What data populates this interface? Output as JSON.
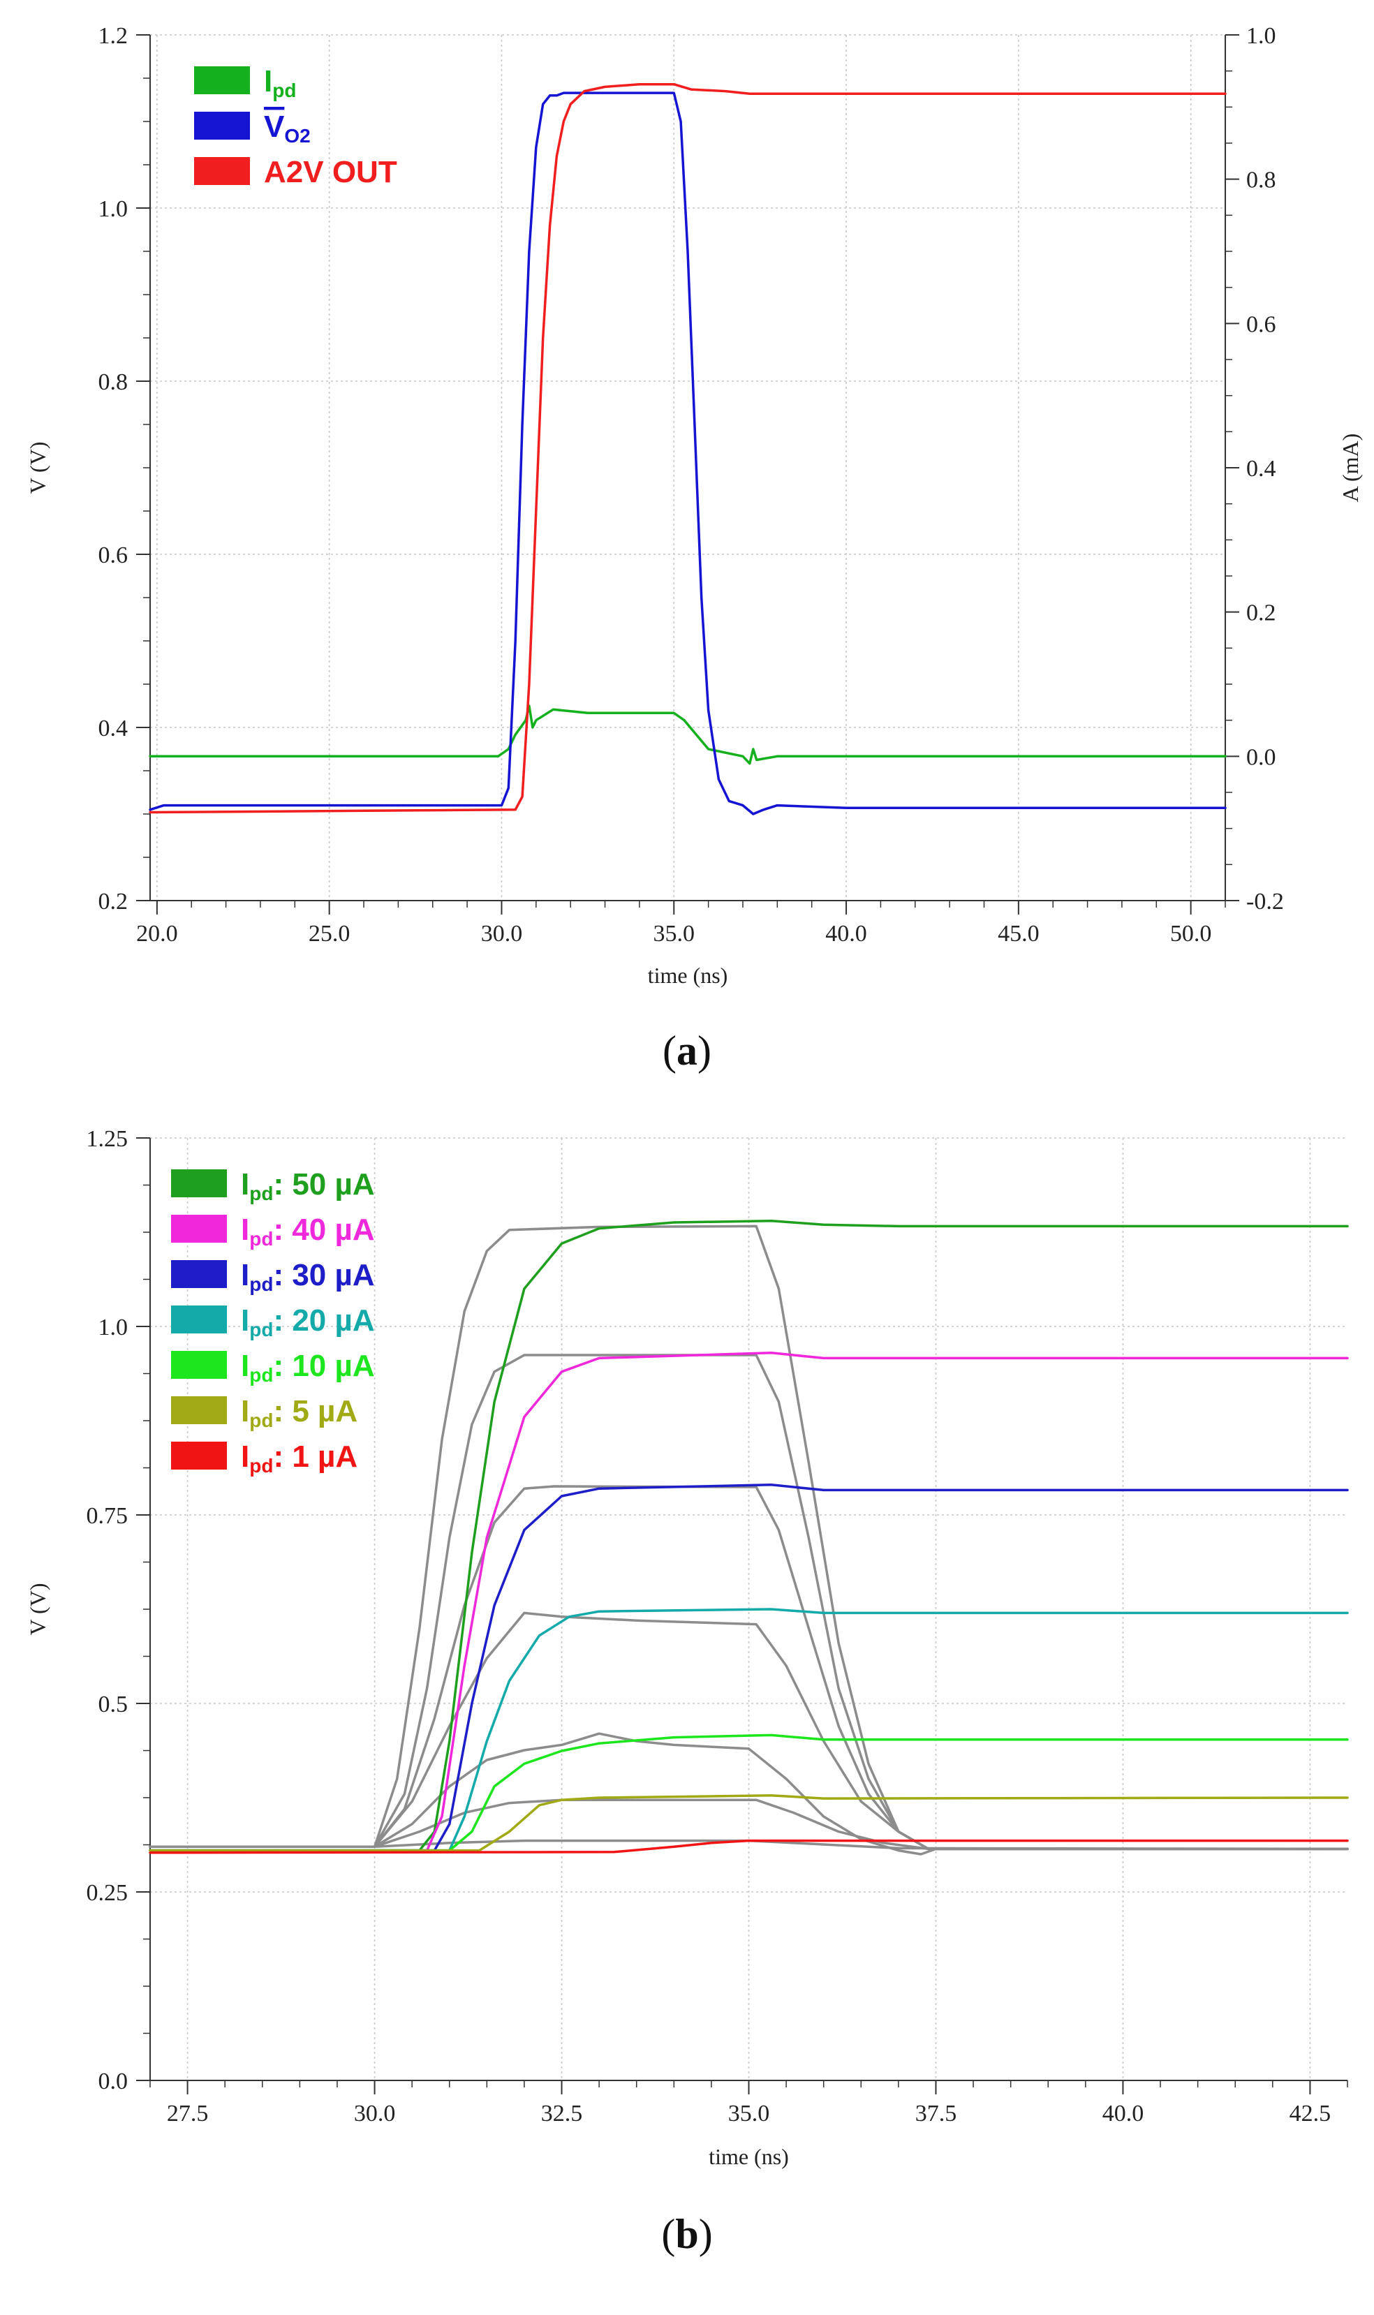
{
  "chart_data": [
    {
      "type": "line",
      "panel_label": "a",
      "xlabel": "time (ns)",
      "ylabel": "V (V)",
      "y2label": "A (mA)",
      "xlim": [
        19.8,
        51.0
      ],
      "ylim": [
        0.2,
        1.2
      ],
      "y2lim": [
        -0.2,
        1.0
      ],
      "xticks": [
        "20.0",
        "25.0",
        "30.0",
        "35.0",
        "40.0",
        "45.0",
        "50.0"
      ],
      "yticks": [
        "0.2",
        "0.4",
        "0.6",
        "0.8",
        "1.0",
        "1.2"
      ],
      "y2ticks": [
        "-0.2",
        "0.0",
        "0.2",
        "0.4",
        "0.6",
        "0.8",
        "1.0"
      ],
      "grid": true,
      "legend_position": "top-left",
      "series": [
        {
          "name": "Ipd",
          "legend_main": "I",
          "legend_sub": "pd",
          "color": "#14b01e",
          "axis": "right",
          "x": [
            19.8,
            29.9,
            30.2,
            30.4,
            30.7,
            30.8,
            30.9,
            31.0,
            31.5,
            32.5,
            35.0,
            35.3,
            36.0,
            37.0,
            37.2,
            37.3,
            37.4,
            38.0,
            51.0
          ],
          "y": [
            0.0,
            0.0,
            0.01,
            0.03,
            0.05,
            0.07,
            0.04,
            0.05,
            0.065,
            0.06,
            0.06,
            0.05,
            0.01,
            0.0,
            -0.01,
            0.01,
            -0.005,
            0.0,
            0.0
          ]
        },
        {
          "name": "VO2 (inverted)",
          "legend_main": "V",
          "legend_sub": "O2",
          "overline": true,
          "color": "#1414d2",
          "axis": "left",
          "x": [
            19.8,
            20.2,
            30.0,
            30.2,
            30.4,
            30.6,
            30.8,
            31.0,
            31.2,
            31.4,
            31.6,
            31.8,
            33.0,
            35.0,
            35.2,
            35.4,
            35.6,
            35.8,
            36.0,
            36.3,
            36.6,
            37.0,
            37.3,
            37.6,
            38.0,
            40.0,
            51.0
          ],
          "y": [
            0.305,
            0.31,
            0.31,
            0.33,
            0.5,
            0.75,
            0.95,
            1.07,
            1.12,
            1.13,
            1.13,
            1.133,
            1.133,
            1.133,
            1.1,
            0.95,
            0.75,
            0.55,
            0.42,
            0.34,
            0.315,
            0.31,
            0.3,
            0.305,
            0.31,
            0.307,
            0.307
          ]
        },
        {
          "name": "A2V OUT",
          "legend_main": "A2V OUT",
          "legend_sub": "",
          "color": "#f01e1e",
          "axis": "left",
          "x": [
            19.8,
            30.4,
            30.6,
            30.8,
            31.0,
            31.2,
            31.4,
            31.6,
            31.8,
            32.0,
            32.4,
            33.0,
            34.0,
            35.0,
            35.5,
            36.5,
            37.2,
            51.0
          ],
          "y": [
            0.302,
            0.305,
            0.32,
            0.45,
            0.65,
            0.85,
            0.98,
            1.06,
            1.1,
            1.12,
            1.135,
            1.14,
            1.143,
            1.143,
            1.137,
            1.135,
            1.132,
            1.132
          ]
        }
      ]
    },
    {
      "type": "line",
      "panel_label": "b",
      "xlabel": "time (ns)",
      "ylabel": "V (V)",
      "xlim": [
        27.0,
        43.0
      ],
      "ylim": [
        0.0,
        1.25
      ],
      "xticks": [
        "27.5",
        "30.0",
        "32.5",
        "35.0",
        "37.5",
        "40.0",
        "42.5"
      ],
      "yticks": [
        "0.0",
        "0.25",
        "0.5",
        "0.75",
        "1.0",
        "1.25"
      ],
      "grid": true,
      "legend_position": "top-left",
      "series": [
        {
          "name": "Ipd: 50 µA",
          "legend_main": "I",
          "legend_sub": "pd",
          "legend_value": ": 50 µA",
          "color": "#1ea01e",
          "x": [
            27.0,
            30.6,
            30.8,
            31.0,
            31.3,
            31.6,
            32.0,
            32.5,
            33.0,
            34.0,
            35.3,
            36.0,
            37.0,
            43.0
          ],
          "y": [
            0.305,
            0.305,
            0.33,
            0.45,
            0.7,
            0.9,
            1.05,
            1.11,
            1.13,
            1.138,
            1.14,
            1.135,
            1.133,
            1.133
          ]
        },
        {
          "name": "Ipd: 40 µA",
          "legend_main": "I",
          "legend_sub": "pd",
          "legend_value": ": 40 µA",
          "color": "#f028dc",
          "x": [
            27.0,
            30.7,
            30.9,
            31.2,
            31.5,
            32.0,
            32.5,
            33.0,
            35.3,
            36.0,
            43.0
          ],
          "y": [
            0.305,
            0.305,
            0.35,
            0.55,
            0.72,
            0.88,
            0.94,
            0.958,
            0.965,
            0.958,
            0.958
          ]
        },
        {
          "name": "Ipd: 30 µA",
          "legend_main": "I",
          "legend_sub": "pd",
          "legend_value": ": 30 µA",
          "color": "#1e1ec8",
          "x": [
            27.0,
            30.8,
            31.0,
            31.3,
            31.6,
            32.0,
            32.5,
            33.0,
            35.3,
            36.0,
            43.0
          ],
          "y": [
            0.305,
            0.305,
            0.34,
            0.5,
            0.63,
            0.73,
            0.775,
            0.785,
            0.79,
            0.783,
            0.783
          ]
        },
        {
          "name": "Ipd: 20 µA",
          "legend_main": "I",
          "legend_sub": "pd",
          "legend_value": ": 20 µA",
          "color": "#14aaaa",
          "x": [
            27.0,
            31.0,
            31.2,
            31.5,
            31.8,
            32.2,
            32.6,
            33.0,
            35.3,
            36.0,
            43.0
          ],
          "y": [
            0.305,
            0.305,
            0.35,
            0.45,
            0.53,
            0.59,
            0.615,
            0.622,
            0.625,
            0.62,
            0.62
          ]
        },
        {
          "name": "Ipd: 10 µA",
          "legend_main": "I",
          "legend_sub": "pd",
          "legend_value": ": 10 µA",
          "color": "#1ee61e",
          "x": [
            27.0,
            31.0,
            31.3,
            31.6,
            32.0,
            32.5,
            33.0,
            34.0,
            35.3,
            36.0,
            43.0
          ],
          "y": [
            0.305,
            0.305,
            0.33,
            0.39,
            0.42,
            0.437,
            0.447,
            0.455,
            0.458,
            0.452,
            0.452
          ]
        },
        {
          "name": "Ipd: 5 µA",
          "legend_main": "I",
          "legend_sub": "pd",
          "legend_value": ": 5  µA",
          "color": "#a0aa14",
          "x": [
            27.0,
            31.4,
            31.8,
            32.2,
            32.5,
            33.0,
            35.3,
            36.0,
            43.0
          ],
          "y": [
            0.305,
            0.305,
            0.33,
            0.365,
            0.372,
            0.375,
            0.378,
            0.374,
            0.375
          ]
        },
        {
          "name": "Ipd: 1 µA",
          "legend_main": "I",
          "legend_sub": "pd",
          "legend_value": ": 1  µA",
          "color": "#f01414",
          "x": [
            27.0,
            33.2,
            34.0,
            34.5,
            35.0,
            35.5,
            36.0,
            43.0
          ],
          "y": [
            0.302,
            0.303,
            0.31,
            0.315,
            0.318,
            0.318,
            0.318,
            0.318
          ]
        },
        {
          "name": "gray 50",
          "legend_main": "",
          "legend_sub": "",
          "color": "#8c8c8c",
          "x": [
            27.0,
            30.0,
            30.3,
            30.6,
            30.9,
            31.2,
            31.5,
            31.8,
            33.0,
            35.1,
            35.4,
            35.8,
            36.2,
            36.6,
            37.0,
            37.4,
            43.0
          ],
          "y": [
            0.31,
            0.31,
            0.4,
            0.6,
            0.85,
            1.02,
            1.1,
            1.128,
            1.132,
            1.133,
            1.05,
            0.82,
            0.58,
            0.42,
            0.33,
            0.307,
            0.307
          ]
        },
        {
          "name": "gray 40",
          "legend_main": "",
          "legend_sub": "",
          "color": "#8c8c8c",
          "x": [
            27.0,
            30.0,
            30.4,
            30.7,
            31.0,
            31.3,
            31.6,
            32.0,
            35.1,
            35.4,
            35.8,
            36.2,
            36.6,
            37.0,
            37.4,
            43.0
          ],
          "y": [
            0.31,
            0.31,
            0.38,
            0.52,
            0.72,
            0.87,
            0.94,
            0.962,
            0.962,
            0.9,
            0.72,
            0.52,
            0.4,
            0.33,
            0.307,
            0.307
          ]
        },
        {
          "name": "gray 30",
          "legend_main": "",
          "legend_sub": "",
          "color": "#8c8c8c",
          "x": [
            27.0,
            30.0,
            30.4,
            30.8,
            31.2,
            31.6,
            32.0,
            32.4,
            35.1,
            35.4,
            35.8,
            36.2,
            36.6,
            37.0,
            37.4,
            43.0
          ],
          "y": [
            0.31,
            0.31,
            0.36,
            0.48,
            0.63,
            0.74,
            0.785,
            0.788,
            0.787,
            0.73,
            0.6,
            0.47,
            0.38,
            0.33,
            0.307,
            0.307
          ]
        },
        {
          "name": "gray 20",
          "legend_main": "",
          "legend_sub": "",
          "color": "#8c8c8c",
          "x": [
            27.0,
            30.0,
            30.5,
            31.0,
            31.5,
            32.0,
            32.5,
            33.5,
            35.1,
            35.5,
            36.0,
            36.5,
            37.0,
            37.4,
            43.0
          ],
          "y": [
            0.31,
            0.31,
            0.37,
            0.47,
            0.56,
            0.62,
            0.615,
            0.61,
            0.605,
            0.55,
            0.45,
            0.37,
            0.33,
            0.307,
            0.307
          ]
        },
        {
          "name": "gray 10",
          "legend_main": "",
          "legend_sub": "",
          "color": "#8c8c8c",
          "x": [
            27.0,
            30.0,
            30.5,
            31.0,
            31.5,
            32.0,
            32.5,
            33.0,
            33.5,
            34.0,
            35.0,
            35.5,
            36.0,
            36.5,
            37.0,
            37.3,
            37.5,
            43.0
          ],
          "y": [
            0.31,
            0.31,
            0.34,
            0.39,
            0.425,
            0.438,
            0.445,
            0.46,
            0.45,
            0.445,
            0.44,
            0.4,
            0.35,
            0.32,
            0.305,
            0.3,
            0.307,
            0.307
          ]
        },
        {
          "name": "gray 5",
          "legend_main": "",
          "legend_sub": "",
          "color": "#8c8c8c",
          "x": [
            27.0,
            30.0,
            30.6,
            31.2,
            31.8,
            32.5,
            35.1,
            35.6,
            36.2,
            36.8,
            37.4,
            43.0
          ],
          "y": [
            0.31,
            0.31,
            0.33,
            0.355,
            0.368,
            0.372,
            0.372,
            0.355,
            0.33,
            0.315,
            0.307,
            0.307
          ]
        },
        {
          "name": "gray 1",
          "legend_main": "",
          "legend_sub": "",
          "color": "#8c8c8c",
          "x": [
            27.0,
            30.0,
            31.0,
            32.0,
            35.0,
            36.0,
            37.0,
            43.0
          ],
          "y": [
            0.31,
            0.31,
            0.315,
            0.318,
            0.318,
            0.313,
            0.308,
            0.307
          ]
        }
      ]
    }
  ]
}
